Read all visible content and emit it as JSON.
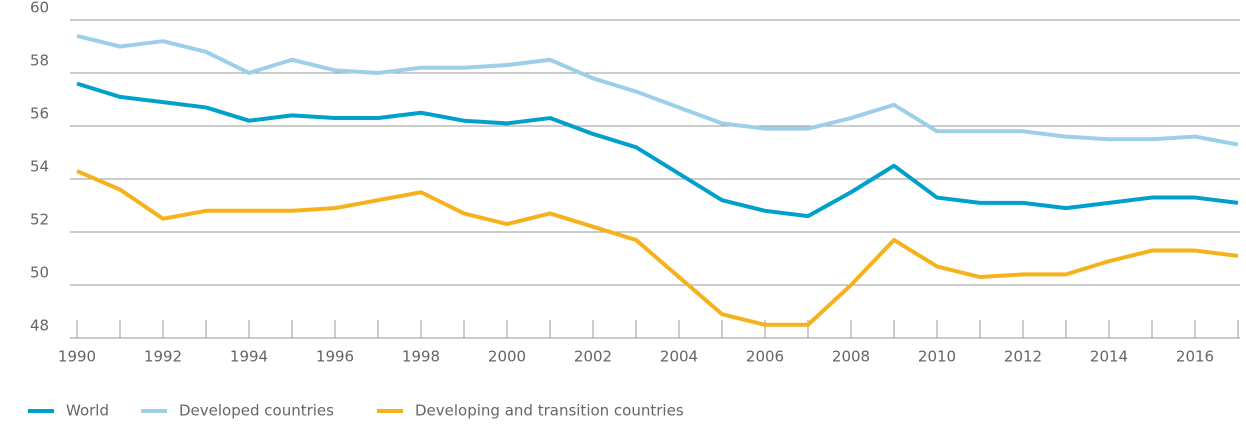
{
  "chart_data": {
    "type": "line",
    "x": [
      1990,
      1991,
      1992,
      1993,
      1994,
      1995,
      1996,
      1997,
      1998,
      1999,
      2000,
      2001,
      2002,
      2003,
      2004,
      2005,
      2006,
      2007,
      2008,
      2009,
      2010,
      2011,
      2012,
      2013,
      2014,
      2015,
      2016,
      2017
    ],
    "series": [
      {
        "name": "World",
        "color": "#00a0cc",
        "values": [
          57.6,
          57.1,
          56.9,
          56.7,
          56.2,
          56.4,
          56.3,
          56.3,
          56.5,
          56.2,
          56.1,
          56.3,
          55.7,
          55.2,
          54.2,
          53.2,
          52.8,
          52.6,
          53.5,
          54.5,
          53.3,
          53.1,
          53.1,
          52.9,
          53.1,
          53.3,
          53.3,
          53.1
        ]
      },
      {
        "name": "Developed countries",
        "color": "#9dcfe8",
        "values": [
          59.4,
          59.0,
          59.2,
          58.8,
          58.0,
          58.5,
          58.1,
          58.0,
          58.2,
          58.2,
          58.3,
          58.5,
          57.8,
          57.3,
          56.7,
          56.1,
          55.9,
          55.9,
          56.3,
          56.8,
          55.8,
          55.8,
          55.8,
          55.6,
          55.5,
          55.5,
          55.6,
          55.3
        ]
      },
      {
        "name": "Developing and transition countries",
        "color": "#f6b21c",
        "values": [
          54.3,
          53.6,
          52.5,
          52.8,
          52.8,
          52.8,
          52.9,
          53.2,
          53.5,
          52.7,
          52.3,
          52.7,
          52.2,
          51.7,
          50.3,
          48.9,
          48.5,
          48.5,
          50.0,
          51.7,
          50.7,
          50.3,
          50.4,
          50.4,
          50.9,
          51.3,
          51.3,
          51.1
        ]
      }
    ],
    "xlim": [
      1990,
      2017
    ],
    "xticks": [
      1990,
      1992,
      1994,
      1996,
      1998,
      2000,
      2002,
      2004,
      2006,
      2008,
      2010,
      2012,
      2014,
      2016
    ],
    "ylim": [
      48,
      60
    ],
    "yticks": [
      48,
      50,
      52,
      54,
      56,
      58,
      60
    ],
    "grid": true
  }
}
